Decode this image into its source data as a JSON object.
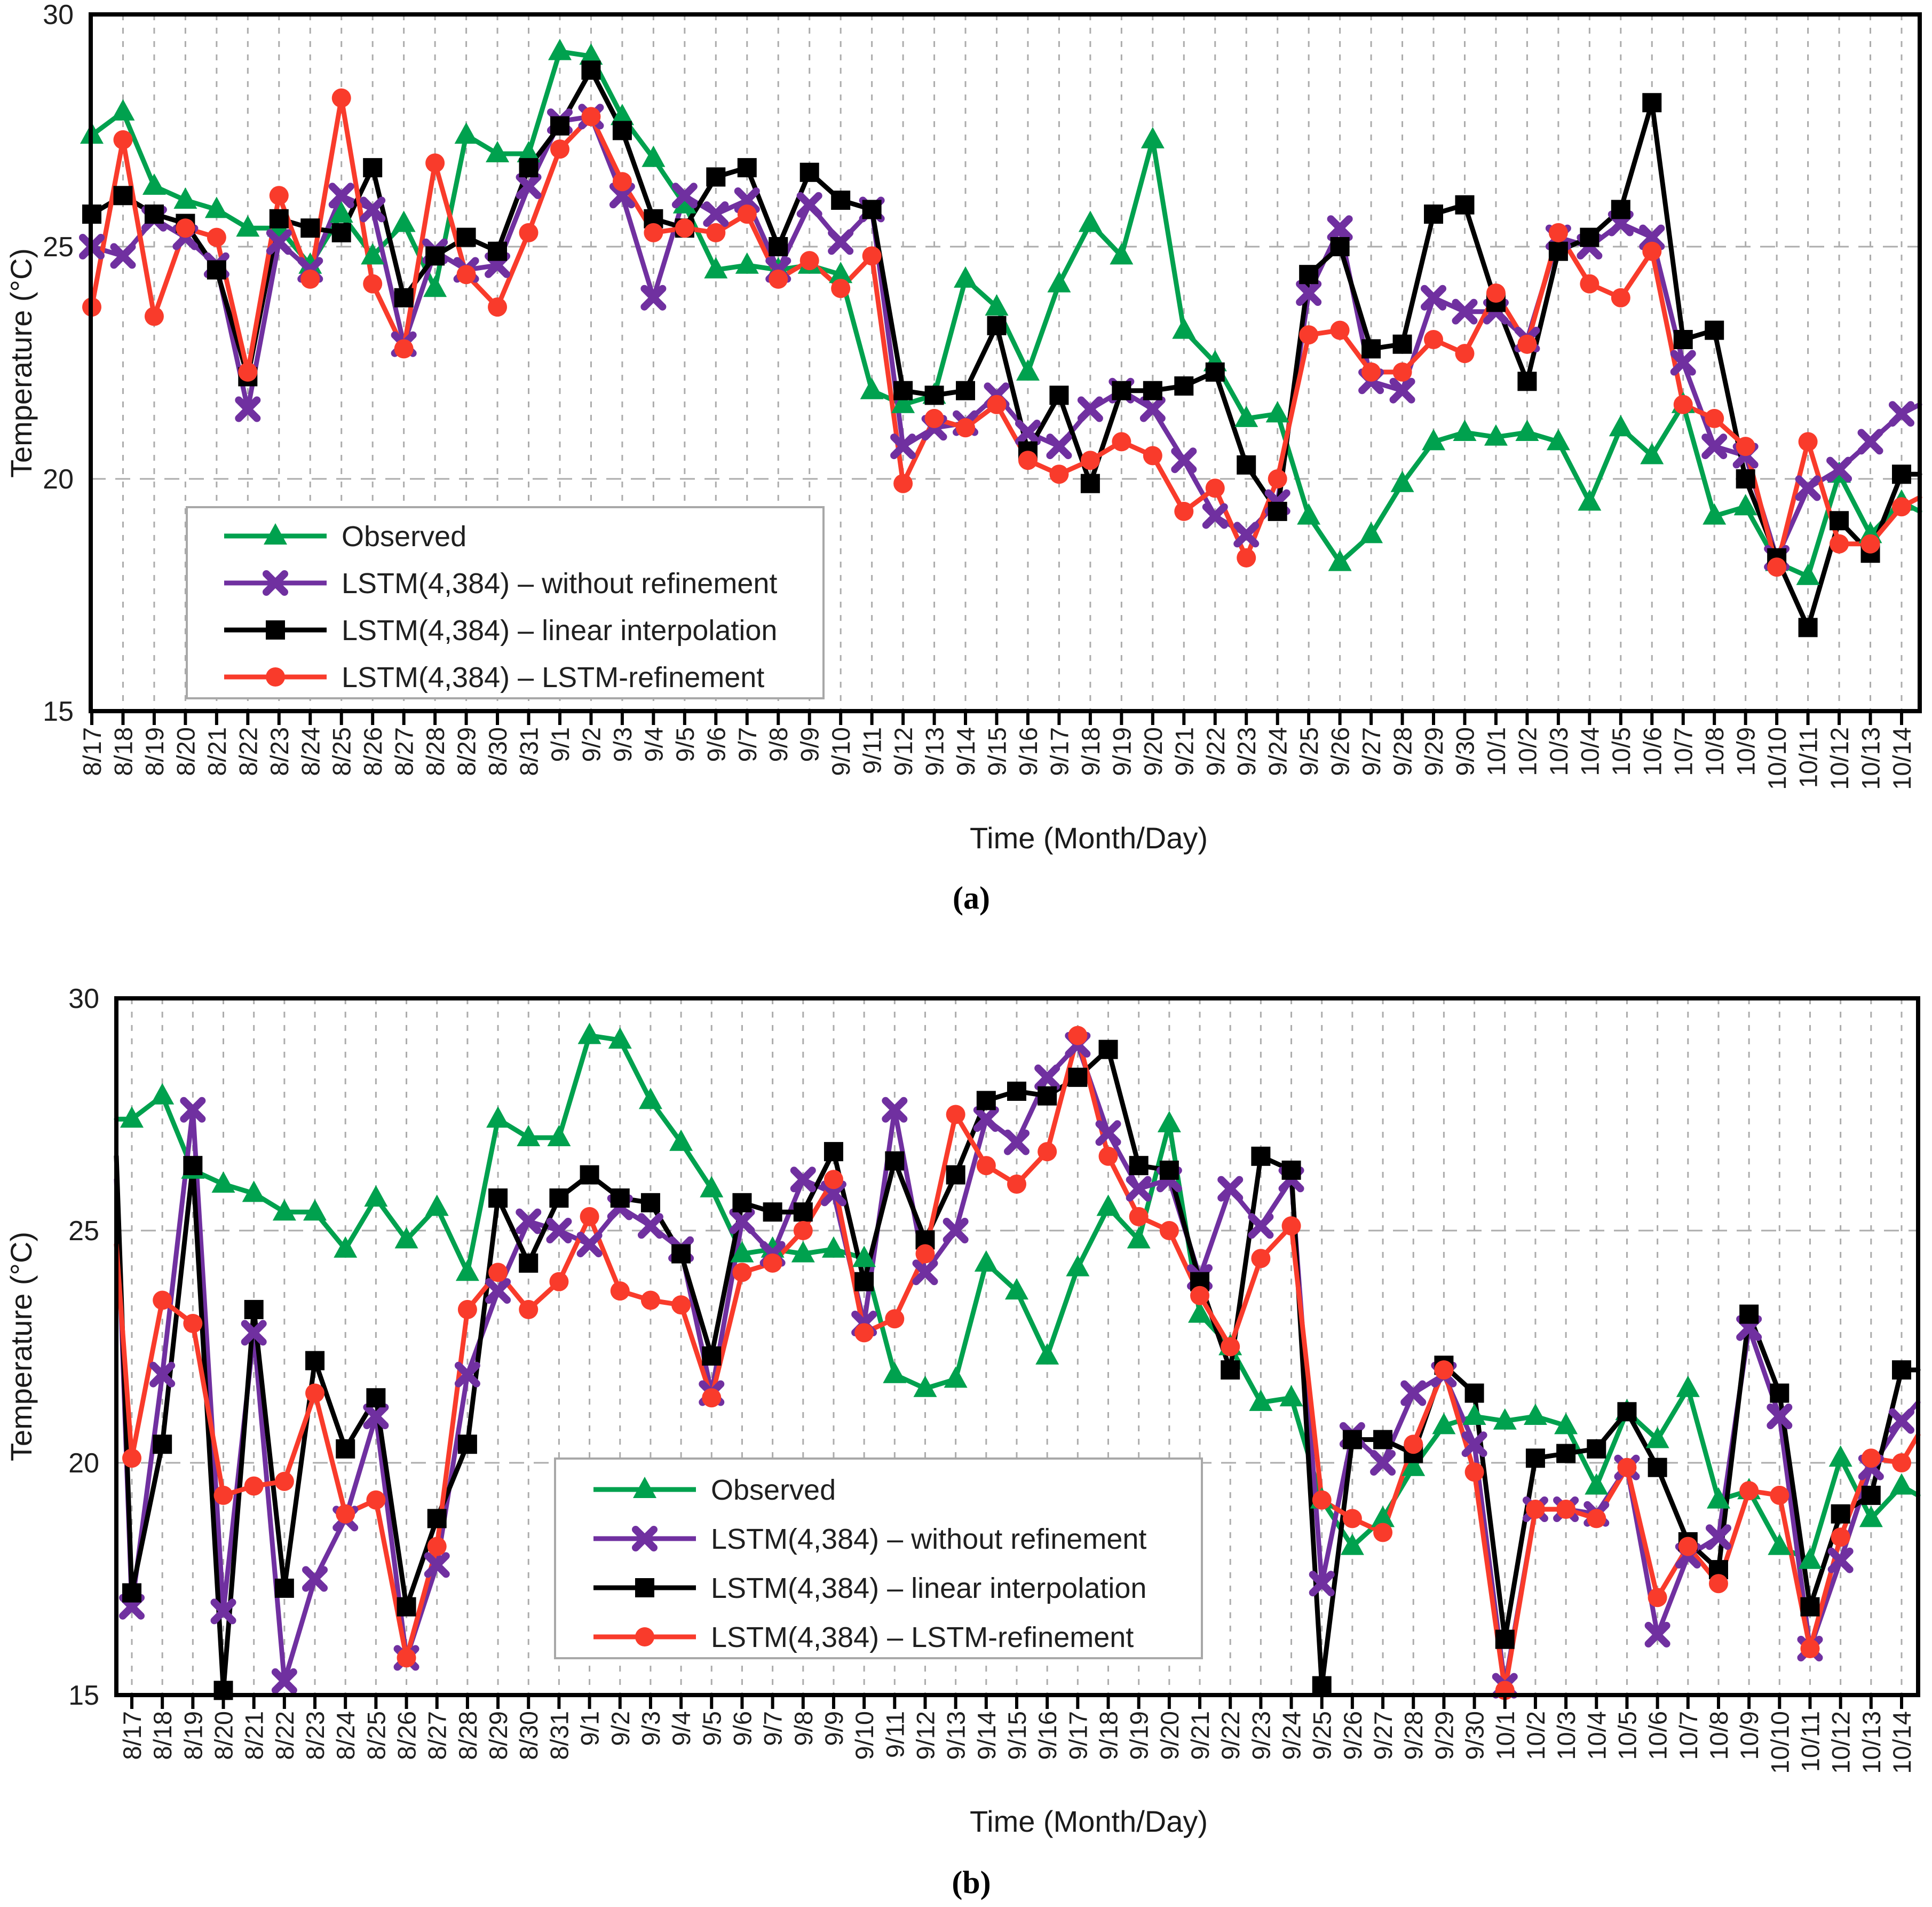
{
  "page": {
    "background": "#ffffff"
  },
  "chart_data": [
    {
      "type": "line",
      "caption": "(a)",
      "xlabel": "Time (Month/Day)",
      "ylabel": "Temperature (°C)",
      "ylim": [
        15,
        30
      ],
      "yticks": [
        30,
        25,
        20,
        15
      ],
      "grid": {
        "vertical": "dashed line at every day",
        "horizontal_at": [
          25,
          20
        ]
      },
      "legend_position": "inside lower-left",
      "categories": [
        "8/17",
        "8/18",
        "8/19",
        "8/20",
        "8/21",
        "8/22",
        "8/23",
        "8/24",
        "8/25",
        "8/26",
        "8/27",
        "8/28",
        "8/29",
        "8/30",
        "8/31",
        "9/1",
        "9/2",
        "9/3",
        "9/4",
        "9/5",
        "9/6",
        "9/7",
        "9/8",
        "9/9",
        "9/10",
        "9/11",
        "9/12",
        "9/13",
        "9/14",
        "9/15",
        "9/16",
        "9/17",
        "9/18",
        "9/19",
        "9/20",
        "9/21",
        "9/22",
        "9/23",
        "9/24",
        "9/25",
        "9/26",
        "9/27",
        "9/28",
        "9/29",
        "9/30",
        "10/1",
        "10/2",
        "10/3",
        "10/4",
        "10/5",
        "10/6",
        "10/7",
        "10/8",
        "10/9",
        "10/10",
        "10/11",
        "10/12",
        "10/13",
        "10/14"
      ],
      "series": [
        {
          "name": "Observed",
          "color": "#00A14E",
          "marker": "triangle",
          "values": [
            27.4,
            27.9,
            26.3,
            26.0,
            25.8,
            25.4,
            25.4,
            24.6,
            25.7,
            24.8,
            25.5,
            24.1,
            27.4,
            27.0,
            27.0,
            29.2,
            29.1,
            27.8,
            26.9,
            25.9,
            24.5,
            24.6,
            24.5,
            24.6,
            24.4,
            21.9,
            21.6,
            21.8,
            24.3,
            23.7,
            22.3,
            24.2,
            25.5,
            24.8,
            27.3,
            23.2,
            22.5,
            21.3,
            21.4,
            19.2,
            18.2,
            18.8,
            19.9,
            20.8,
            21.0,
            20.9,
            21.0,
            20.8,
            19.5,
            21.1,
            20.5,
            21.6,
            19.2,
            19.4,
            18.2,
            17.9,
            20.1,
            18.8,
            19.5
          ],
          "edge_left": null,
          "edge_right": 19.3
        },
        {
          "name": "LSTM(4,384) – without refinement",
          "color": "#7030A0",
          "marker": "x",
          "values": [
            25.0,
            24.8,
            25.6,
            25.2,
            24.6,
            21.5,
            25.1,
            24.5,
            26.1,
            25.8,
            22.9,
            24.9,
            24.5,
            24.6,
            26.3,
            27.7,
            27.8,
            26.1,
            23.9,
            26.1,
            25.7,
            26.0,
            24.5,
            25.9,
            25.1,
            25.8,
            20.7,
            21.1,
            21.2,
            21.8,
            21.0,
            20.7,
            21.5,
            21.9,
            21.5,
            20.4,
            19.2,
            18.8,
            19.5,
            24.0,
            25.4,
            22.1,
            21.9,
            23.9,
            23.6,
            23.6,
            23.0,
            25.2,
            25.0,
            25.5,
            25.2,
            22.5,
            20.7,
            20.5,
            18.3,
            19.8,
            20.2,
            20.8,
            21.4
          ],
          "edge_left": null,
          "edge_right": 21.6
        },
        {
          "name": "LSTM(4,384) – linear interpolation",
          "color": "#000000",
          "marker": "square",
          "values": [
            25.7,
            26.1,
            25.7,
            25.5,
            24.5,
            22.2,
            25.6,
            25.4,
            25.3,
            26.7,
            23.9,
            24.8,
            25.2,
            24.9,
            26.7,
            27.6,
            28.8,
            27.5,
            25.6,
            25.4,
            26.5,
            26.7,
            25.0,
            26.6,
            26.0,
            25.8,
            21.9,
            21.8,
            21.9,
            23.3,
            20.6,
            21.8,
            19.9,
            21.9,
            21.9,
            22.0,
            22.3,
            20.3,
            19.3,
            24.4,
            25.0,
            22.8,
            22.9,
            25.7,
            25.9,
            23.8,
            22.1,
            24.9,
            25.2,
            25.8,
            28.1,
            23.0,
            23.2,
            20.0,
            18.3,
            16.8,
            19.1,
            18.4,
            20.1
          ],
          "edge_left": null,
          "edge_right": 20.1
        },
        {
          "name": "LSTM(4,384) – LSTM-refinement",
          "color": "#F93B2B",
          "marker": "circle",
          "values": [
            23.7,
            27.3,
            23.5,
            25.4,
            25.2,
            22.3,
            26.1,
            24.3,
            28.2,
            24.2,
            22.8,
            26.8,
            24.4,
            23.7,
            25.3,
            27.1,
            27.8,
            26.4,
            25.3,
            25.4,
            25.3,
            25.7,
            24.3,
            24.7,
            24.1,
            24.8,
            19.9,
            21.3,
            21.1,
            21.6,
            20.4,
            20.1,
            20.4,
            20.8,
            20.5,
            19.3,
            19.8,
            18.3,
            20.0,
            23.1,
            23.2,
            22.3,
            22.3,
            23.0,
            22.7,
            24.0,
            22.9,
            25.3,
            24.2,
            23.9,
            24.9,
            21.6,
            21.3,
            20.7,
            18.1,
            20.8,
            18.6,
            18.6,
            19.4
          ],
          "edge_left": null,
          "edge_right": 19.6
        }
      ]
    },
    {
      "type": "line",
      "caption": "(b)",
      "xlabel": "Time (Month/Day)",
      "ylabel": "Temperature (°C)",
      "ylim": [
        15,
        30
      ],
      "yticks": [
        30,
        25,
        20,
        15
      ],
      "grid": {
        "vertical": "dashed line at every day",
        "horizontal_at": [
          25,
          20
        ]
      },
      "legend_position": "inside lower-center-left",
      "categories": [
        "8/17",
        "8/18",
        "8/19",
        "8/20",
        "8/21",
        "8/22",
        "8/23",
        "8/24",
        "8/25",
        "8/26",
        "8/27",
        "8/28",
        "8/29",
        "8/30",
        "8/31",
        "9/1",
        "9/2",
        "9/3",
        "9/4",
        "9/5",
        "9/6",
        "9/7",
        "9/8",
        "9/9",
        "9/10",
        "9/11",
        "9/12",
        "9/13",
        "9/14",
        "9/15",
        "9/16",
        "9/17",
        "9/18",
        "9/19",
        "9/20",
        "9/21",
        "9/22",
        "9/23",
        "9/24",
        "9/25",
        "9/26",
        "9/27",
        "9/28",
        "9/29",
        "9/30",
        "10/1",
        "10/2",
        "10/3",
        "10/4",
        "10/5",
        "10/6",
        "10/7",
        "10/8",
        "10/9",
        "10/10",
        "10/11",
        "10/12",
        "10/13",
        "10/14"
      ],
      "series": [
        {
          "name": "Observed",
          "color": "#00A14E",
          "marker": "triangle",
          "values": [
            27.4,
            27.9,
            26.3,
            26.0,
            25.8,
            25.4,
            25.4,
            24.6,
            25.7,
            24.8,
            25.5,
            24.1,
            27.4,
            27.0,
            27.0,
            29.2,
            29.1,
            27.8,
            26.9,
            25.9,
            24.5,
            24.6,
            24.5,
            24.6,
            24.4,
            21.9,
            21.6,
            21.8,
            24.3,
            23.7,
            22.3,
            24.2,
            25.5,
            24.8,
            27.3,
            23.2,
            22.5,
            21.3,
            21.4,
            19.2,
            18.2,
            18.8,
            19.9,
            20.8,
            21.0,
            20.9,
            21.0,
            20.8,
            19.5,
            21.1,
            20.5,
            21.6,
            19.2,
            19.4,
            18.2,
            17.9,
            20.1,
            18.8,
            19.5
          ],
          "edge_left": 27.4,
          "edge_right": 19.3
        },
        {
          "name": "LSTM(4,384) – without refinement",
          "color": "#7030A0",
          "marker": "x",
          "values": [
            16.9,
            21.9,
            27.6,
            16.8,
            22.8,
            15.3,
            17.5,
            18.8,
            21.0,
            15.8,
            17.8,
            21.9,
            23.7,
            25.2,
            25.0,
            24.7,
            25.5,
            25.1,
            24.6,
            21.5,
            25.2,
            24.5,
            26.1,
            25.8,
            23.0,
            27.6,
            24.1,
            25.0,
            27.4,
            26.9,
            28.3,
            29.0,
            27.1,
            25.9,
            26.1,
            24.0,
            25.9,
            25.1,
            26.1,
            17.4,
            20.6,
            20.0,
            21.5,
            21.9,
            20.4,
            15.2,
            19.0,
            19.0,
            18.9,
            19.9,
            16.3,
            18.0,
            18.4,
            22.9,
            21.0,
            16.0,
            17.9,
            19.9,
            20.9
          ],
          "edge_left": 26.1,
          "edge_right": 21.3
        },
        {
          "name": "LSTM(4,384) – linear interpolation",
          "color": "#000000",
          "marker": "square",
          "values": [
            17.2,
            20.4,
            26.4,
            15.1,
            23.3,
            17.3,
            22.2,
            20.3,
            21.4,
            16.9,
            18.8,
            20.4,
            25.7,
            24.3,
            25.7,
            26.2,
            25.7,
            25.6,
            24.5,
            22.3,
            25.6,
            25.4,
            25.4,
            26.7,
            23.9,
            26.5,
            24.8,
            26.2,
            27.8,
            28.0,
            27.9,
            28.3,
            28.9,
            26.4,
            26.3,
            23.9,
            22.0,
            26.6,
            26.3,
            15.2,
            20.5,
            20.5,
            20.2,
            22.1,
            21.5,
            16.2,
            20.1,
            20.2,
            20.3,
            21.1,
            19.9,
            18.3,
            17.7,
            23.2,
            21.5,
            16.9,
            18.9,
            19.3,
            22.0
          ],
          "edge_left": 26.6,
          "edge_right": 22.0
        },
        {
          "name": "LSTM(4,384) – LSTM-refinement",
          "color": "#F93B2B",
          "marker": "circle",
          "values": [
            20.1,
            23.5,
            23.0,
            19.3,
            19.5,
            19.6,
            21.5,
            18.9,
            19.2,
            15.8,
            18.2,
            23.3,
            24.1,
            23.3,
            23.9,
            25.3,
            23.7,
            23.5,
            23.4,
            21.4,
            24.1,
            24.3,
            25.0,
            26.1,
            22.8,
            23.1,
            24.5,
            27.5,
            26.4,
            26.0,
            26.7,
            29.2,
            26.6,
            25.3,
            25.0,
            23.6,
            22.5,
            24.4,
            25.1,
            19.2,
            18.8,
            18.5,
            20.4,
            22.0,
            19.8,
            15.1,
            19.0,
            19.0,
            18.8,
            19.9,
            17.1,
            18.2,
            17.4,
            19.4,
            19.3,
            16.0,
            18.4,
            20.1,
            20.0
          ],
          "edge_left": 24.7,
          "edge_right": 20.6
        }
      ]
    }
  ]
}
